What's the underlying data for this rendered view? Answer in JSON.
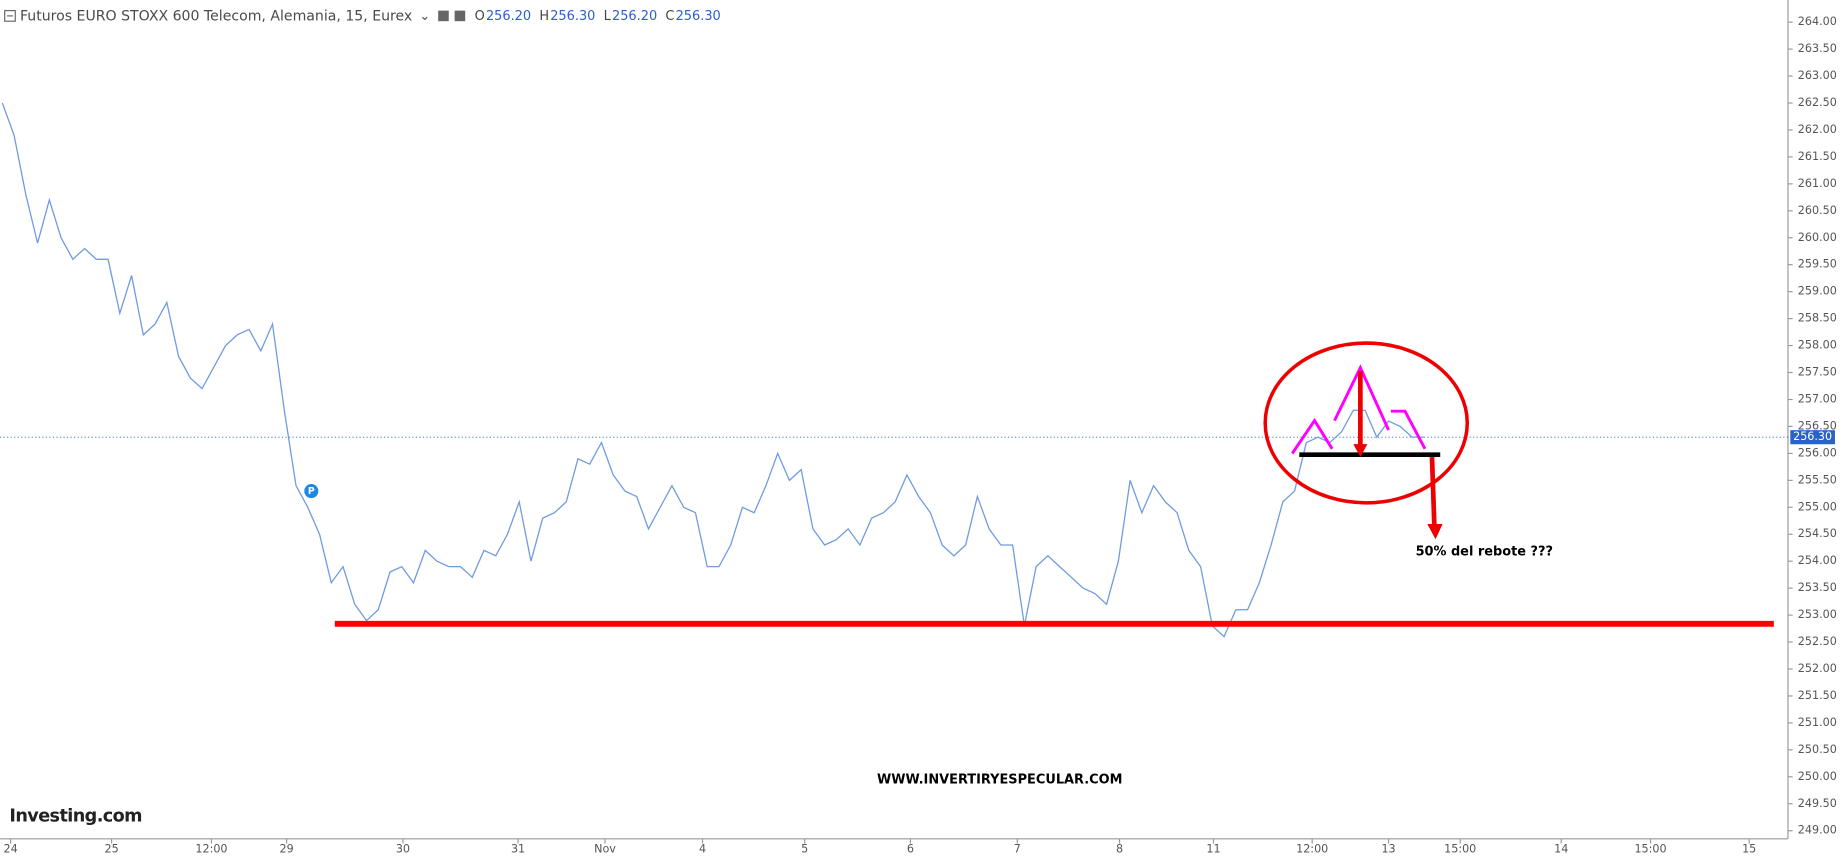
{
  "chart_data": {
    "type": "line",
    "title": "Futuros EURO STOXX 600 Telecom, Alemania, 15, Eurex",
    "ohlc": [
      {
        "name": "O",
        "label": "256.20"
      },
      {
        "name": "H",
        "label": "256.30"
      },
      {
        "name": "L",
        "label": "256.20"
      },
      {
        "name": "C",
        "label": "256.30"
      }
    ],
    "last": {
      "value": 256.3,
      "label": "256.30"
    },
    "annotations": [
      "50% del rebote ???",
      "WWW.INVERTIRYESPECULAR.COM"
    ],
    "logo": "Investing.com",
    "marker": "P",
    "x": [
      0,
      1,
      2,
      3,
      4,
      5,
      6,
      7,
      8,
      9,
      10,
      11,
      12,
      13,
      14,
      15,
      16,
      17,
      18,
      19,
      20,
      21,
      22,
      23,
      24,
      25,
      26,
      27,
      28,
      29,
      30,
      31,
      32,
      33,
      34,
      35,
      36,
      37,
      38,
      39,
      40,
      41,
      42,
      43,
      44,
      45,
      46,
      47,
      48,
      49,
      50,
      51,
      52,
      53,
      54,
      55,
      56,
      57,
      58,
      59,
      60,
      61,
      62,
      63,
      64,
      65,
      66,
      67,
      68,
      69,
      70,
      71,
      72,
      73,
      74,
      75,
      76,
      77,
      78,
      79,
      80,
      81,
      82,
      83,
      84,
      85,
      86,
      87,
      88,
      89,
      90,
      91,
      92,
      93,
      94,
      95,
      96,
      97,
      98,
      99,
      100,
      101,
      102,
      103,
      104,
      105,
      106,
      107,
      108,
      109,
      110,
      111,
      112,
      113,
      114,
      115,
      116,
      117,
      118,
      119,
      120,
      121
    ],
    "series": [
      {
        "name": "Futuros EURO STOXX 600 Telecom",
        "color": "#6f9be0",
        "values": [
          262.5,
          261.9,
          260.8,
          259.9,
          260.7,
          260.0,
          259.6,
          259.8,
          259.6,
          259.6,
          258.6,
          259.3,
          258.2,
          258.4,
          258.8,
          257.8,
          257.4,
          257.2,
          257.6,
          258.0,
          258.2,
          258.3,
          257.9,
          258.4,
          256.8,
          255.4,
          255.0,
          254.5,
          253.6,
          253.9,
          253.2,
          252.9,
          253.1,
          253.8,
          253.9,
          253.6,
          254.2,
          254.0,
          253.9,
          253.9,
          253.7,
          254.2,
          254.1,
          254.5,
          255.1,
          254.0,
          254.8,
          254.9,
          255.1,
          255.9,
          255.8,
          256.2,
          255.6,
          255.3,
          255.2,
          254.6,
          255.0,
          255.4,
          255.0,
          254.9,
          253.9,
          253.9,
          254.3,
          255.0,
          254.9,
          255.4,
          256.0,
          255.5,
          255.7,
          254.6,
          254.3,
          254.4,
          254.6,
          254.3,
          254.8,
          254.9,
          255.1,
          255.6,
          255.2,
          254.9,
          254.3,
          254.1,
          254.3,
          255.2,
          254.6,
          254.3,
          254.3,
          252.8,
          253.9,
          254.1,
          253.9,
          253.7,
          253.5,
          253.4,
          253.2,
          254.0,
          255.5,
          254.9,
          255.4,
          255.1,
          254.9,
          254.2,
          253.9,
          252.8,
          252.6,
          253.1,
          253.1,
          253.6,
          254.3,
          255.1,
          255.3,
          256.2,
          256.3,
          256.2,
          256.4,
          256.8,
          256.8,
          256.3,
          256.6,
          256.5,
          256.3,
          256.3
        ]
      }
    ],
    "xlim": [
      -0.2,
      152
    ],
    "xticks": [
      {
        "value": 0.7,
        "label": "24"
      },
      {
        "value": 9.3,
        "label": "25"
      },
      {
        "value": 17.8,
        "label": "12:00"
      },
      {
        "value": 24.2,
        "label": "29"
      },
      {
        "value": 34.1,
        "label": "30"
      },
      {
        "value": 43.9,
        "label": "31"
      },
      {
        "value": 51.3,
        "label": "Nov"
      },
      {
        "value": 59.6,
        "label": "4"
      },
      {
        "value": 68.3,
        "label": "5"
      },
      {
        "value": 77.3,
        "label": "6"
      },
      {
        "value": 86.4,
        "label": "7"
      },
      {
        "value": 95.1,
        "label": "8"
      },
      {
        "value": 103.1,
        "label": "11"
      },
      {
        "value": 111.5,
        "label": "12:00"
      },
      {
        "value": 118,
        "label": "13"
      },
      {
        "value": 124.1,
        "label": "15:00"
      },
      {
        "value": 132.7,
        "label": "14"
      },
      {
        "value": 140.3,
        "label": "15:00"
      },
      {
        "value": 148.7,
        "label": "15"
      }
    ],
    "ylim": [
      248.85,
      264.41
    ],
    "yticks": [
      {
        "value": 249,
        "label": "249.00"
      },
      {
        "value": 249.5,
        "label": "249.50"
      },
      {
        "value": 250,
        "label": "250.00"
      },
      {
        "value": 250.5,
        "label": "250.50"
      },
      {
        "value": 251,
        "label": "251.00"
      },
      {
        "value": 251.5,
        "label": "251.50"
      },
      {
        "value": 252,
        "label": "252.00"
      },
      {
        "value": 252.5,
        "label": "252.50"
      },
      {
        "value": 253,
        "label": "253.00"
      },
      {
        "value": 253.5,
        "label": "253.50"
      },
      {
        "value": 254,
        "label": "254.00"
      },
      {
        "value": 254.5,
        "label": "254.50"
      },
      {
        "value": 255,
        "label": "255.00"
      },
      {
        "value": 255.5,
        "label": "255.50"
      },
      {
        "value": 256,
        "label": "256.00"
      },
      {
        "value": 256.5,
        "label": "256.50"
      },
      {
        "value": 257,
        "label": "257.00"
      },
      {
        "value": 257.5,
        "label": "257.50"
      },
      {
        "value": 258,
        "label": "258.00"
      },
      {
        "value": 258.5,
        "label": "258.50"
      },
      {
        "value": 259,
        "label": "259.00"
      },
      {
        "value": 259.5,
        "label": "259.50"
      },
      {
        "value": 260,
        "label": "260.00"
      },
      {
        "value": 260.5,
        "label": "260.50"
      },
      {
        "value": 261,
        "label": "261.00"
      },
      {
        "value": 261.5,
        "label": "261.50"
      },
      {
        "value": 262,
        "label": "262.00"
      },
      {
        "value": 262.5,
        "label": "262.50"
      },
      {
        "value": 263,
        "label": "263.00"
      },
      {
        "value": 263.5,
        "label": "263.50"
      },
      {
        "value": 264,
        "label": "264.00"
      }
    ],
    "grid": false
  }
}
